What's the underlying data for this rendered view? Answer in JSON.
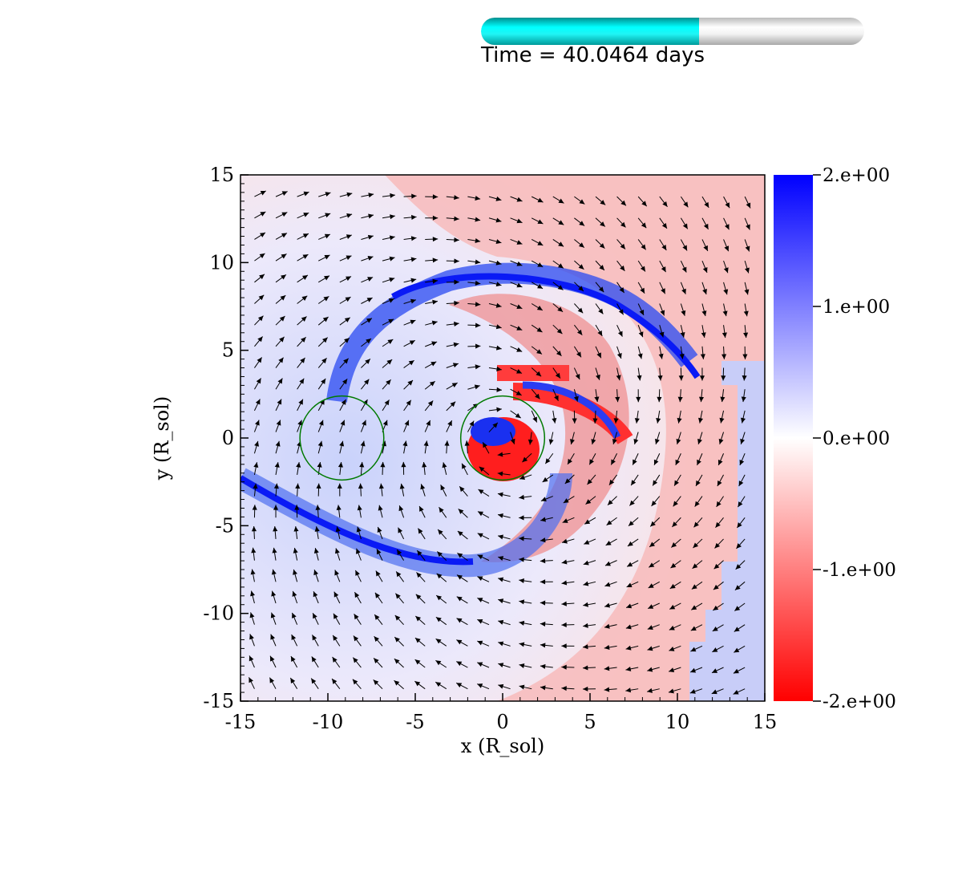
{
  "time_slider": {
    "label": "Time = 40.0464 days",
    "progress": 0.57
  },
  "chart_data": {
    "type": "heatmap",
    "title": "",
    "xlabel": "x (R_sol)",
    "ylabel": "y (R_sol)",
    "xlim": [
      -15,
      15
    ],
    "ylim": [
      -15,
      15
    ],
    "xticks": [
      -15,
      -10,
      -5,
      0,
      5,
      10,
      15
    ],
    "yticks": [
      -15,
      -10,
      -5,
      0,
      5,
      10,
      15
    ],
    "xtick_labels": [
      "-15",
      "-10",
      "-5",
      "0",
      "5",
      "10",
      "15"
    ],
    "ytick_labels": [
      "-15",
      "-10",
      "-5",
      "0",
      "5",
      "10",
      "15"
    ],
    "colorbar": {
      "range": [
        -2,
        2
      ],
      "ticks": [
        2,
        1,
        0,
        -1,
        -2
      ],
      "labels": [
        "2.e+00",
        "1.e+00",
        "0.e+00",
        "-1.e+00",
        "-2.e+00"
      ],
      "color_max": "#0000ff",
      "color_mid": "#ffffff",
      "color_min": "#ff0000"
    },
    "circles": [
      {
        "cx": -9.2,
        "cy": 0.0,
        "r": 2.4,
        "color": "#007a00"
      },
      {
        "cx": 0.0,
        "cy": 0.0,
        "r": 2.4,
        "color": "#007a00"
      }
    ],
    "overlay": "velocity vector field (arrows)"
  }
}
